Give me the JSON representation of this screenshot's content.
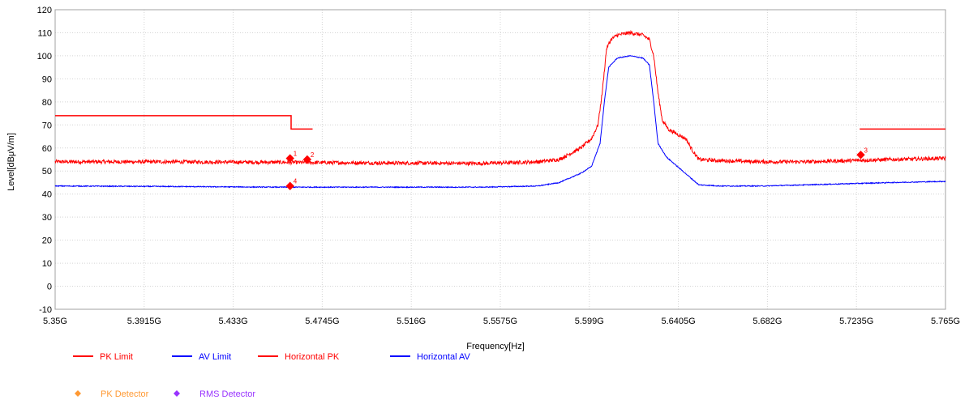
{
  "chart_data": {
    "type": "line",
    "xlabel": "Frequency[Hz]",
    "ylabel": "Level[dBμV/m]",
    "xlim": [
      5.35,
      5.765
    ],
    "ylim": [
      -10,
      120
    ],
    "grid": true,
    "x_tick_values": [
      5.35,
      5.3915,
      5.433,
      5.4745,
      5.516,
      5.5575,
      5.599,
      5.6405,
      5.682,
      5.7235,
      5.765
    ],
    "x_tick_labels": [
      "5.35G",
      "5.3915G",
      "5.433G",
      "5.4745G",
      "5.516G",
      "5.5575G",
      "5.599G",
      "5.6405G",
      "5.682G",
      "5.7235G",
      "5.765G"
    ],
    "y_ticks": [
      -10,
      0,
      10,
      20,
      30,
      40,
      50,
      60,
      70,
      80,
      90,
      100,
      110,
      120
    ],
    "legend_placement": "bottom-left",
    "series": [
      {
        "name": "PK Limit",
        "color": "#ff0000",
        "segments": [
          [
            [
              5.35,
              74
            ],
            [
              5.46,
              74
            ],
            [
              5.46,
              68.2
            ],
            [
              5.47,
              68.2
            ]
          ],
          [
            [
              5.725,
              68.2
            ],
            [
              5.765,
              68.2
            ]
          ]
        ]
      },
      {
        "name": "AV Limit",
        "color": "#0000ff",
        "segments": []
      },
      {
        "name": "Horizontal PK",
        "color": "#ff0000",
        "noise": 0.8,
        "x": [
          5.35,
          5.4,
          5.45,
          5.5,
          5.55,
          5.575,
          5.585,
          5.595,
          5.6,
          5.603,
          5.605,
          5.607,
          5.609,
          5.612,
          5.618,
          5.624,
          5.627,
          5.629,
          5.631,
          5.633,
          5.636,
          5.64,
          5.644,
          5.647,
          5.65,
          5.66,
          5.68,
          5.7,
          5.72,
          5.74,
          5.765
        ],
        "y": [
          54,
          54,
          53.8,
          53.5,
          53.3,
          54,
          55,
          60,
          64,
          70,
          84,
          103,
          107,
          109,
          110,
          109,
          107,
          100,
          84,
          72,
          68,
          66,
          64,
          59,
          55,
          54.5,
          54,
          54,
          54.5,
          55,
          55.5
        ]
      },
      {
        "name": "Horizontal AV",
        "color": "#0000ff",
        "noise": 0.2,
        "x": [
          5.35,
          5.4,
          5.45,
          5.5,
          5.55,
          5.575,
          5.585,
          5.59,
          5.595,
          5.6,
          5.604,
          5.606,
          5.608,
          5.612,
          5.618,
          5.624,
          5.627,
          5.629,
          5.631,
          5.635,
          5.64,
          5.645,
          5.65,
          5.66,
          5.68,
          5.7,
          5.72,
          5.74,
          5.765
        ],
        "y": [
          43.5,
          43.3,
          43,
          43,
          43,
          43.5,
          45,
          47,
          49,
          52,
          62,
          80,
          95,
          99,
          100,
          99,
          96,
          80,
          62,
          56,
          52,
          48,
          44,
          43.5,
          43.5,
          44,
          44.5,
          45,
          45.5
        ]
      }
    ],
    "markers": [
      {
        "label": "1",
        "x": 5.4595,
        "y": 55.5,
        "color": "#ff0000"
      },
      {
        "label": "2",
        "x": 5.4675,
        "y": 55,
        "color": "#ff0000"
      },
      {
        "label": "3",
        "x": 5.7255,
        "y": 57,
        "color": "#ff0000"
      },
      {
        "label": "4",
        "x": 5.4595,
        "y": 43.5,
        "color": "#ff0000"
      }
    ],
    "legend": [
      {
        "name": "PK Limit",
        "kind": "line",
        "color": "#ff0000"
      },
      {
        "name": "AV Limit",
        "kind": "line",
        "color": "#0000ff"
      },
      {
        "name": "Horizontal PK",
        "kind": "line",
        "color": "#ff0000"
      },
      {
        "name": "Horizontal AV",
        "kind": "line",
        "color": "#0000ff"
      },
      {
        "name": "PK Detector",
        "kind": "diamond",
        "color": "#ff9933"
      },
      {
        "name": "RMS Detector",
        "kind": "diamond",
        "color": "#9933ff"
      }
    ]
  }
}
